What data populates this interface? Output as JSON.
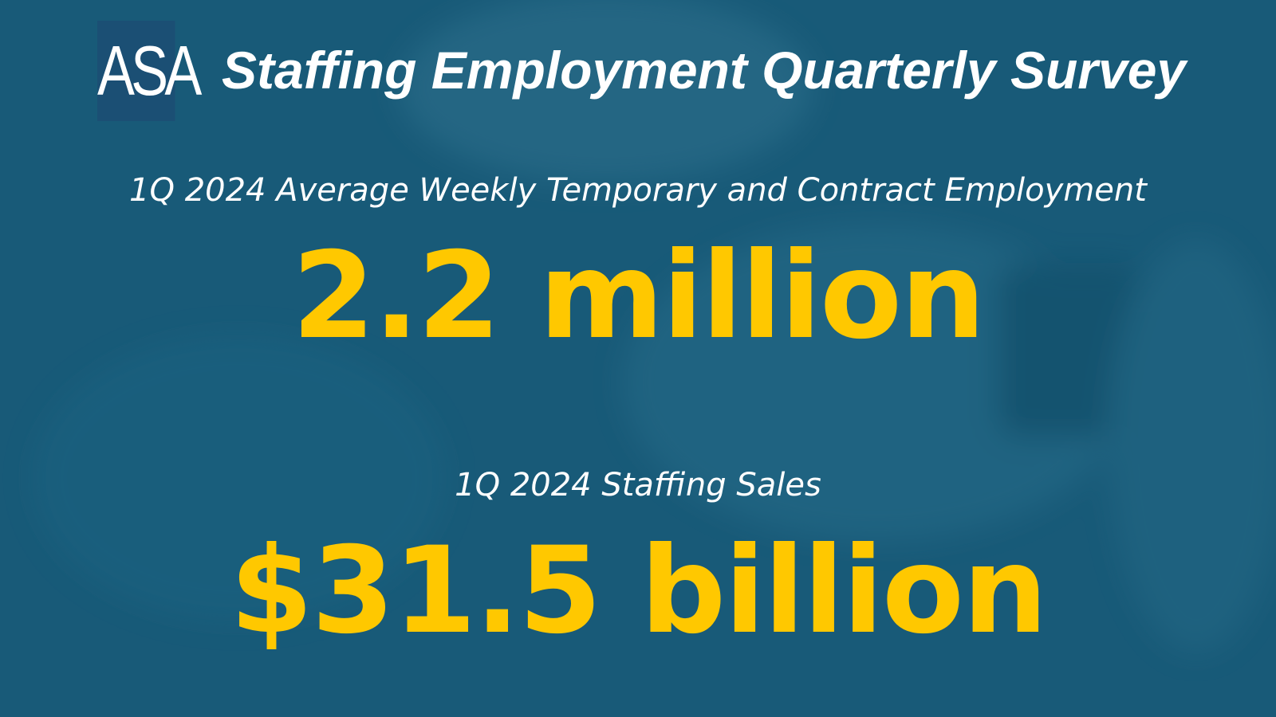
{
  "header": {
    "logo": "ASA",
    "title": "Staffing Employment Quarterly Survey"
  },
  "stats": [
    {
      "label": "1Q 2024 Average Weekly Temporary and Contract Employment",
      "value": "2.2 million"
    },
    {
      "label": "1Q 2024 Staffing Sales",
      "value": "$31.5 billion"
    }
  ]
}
